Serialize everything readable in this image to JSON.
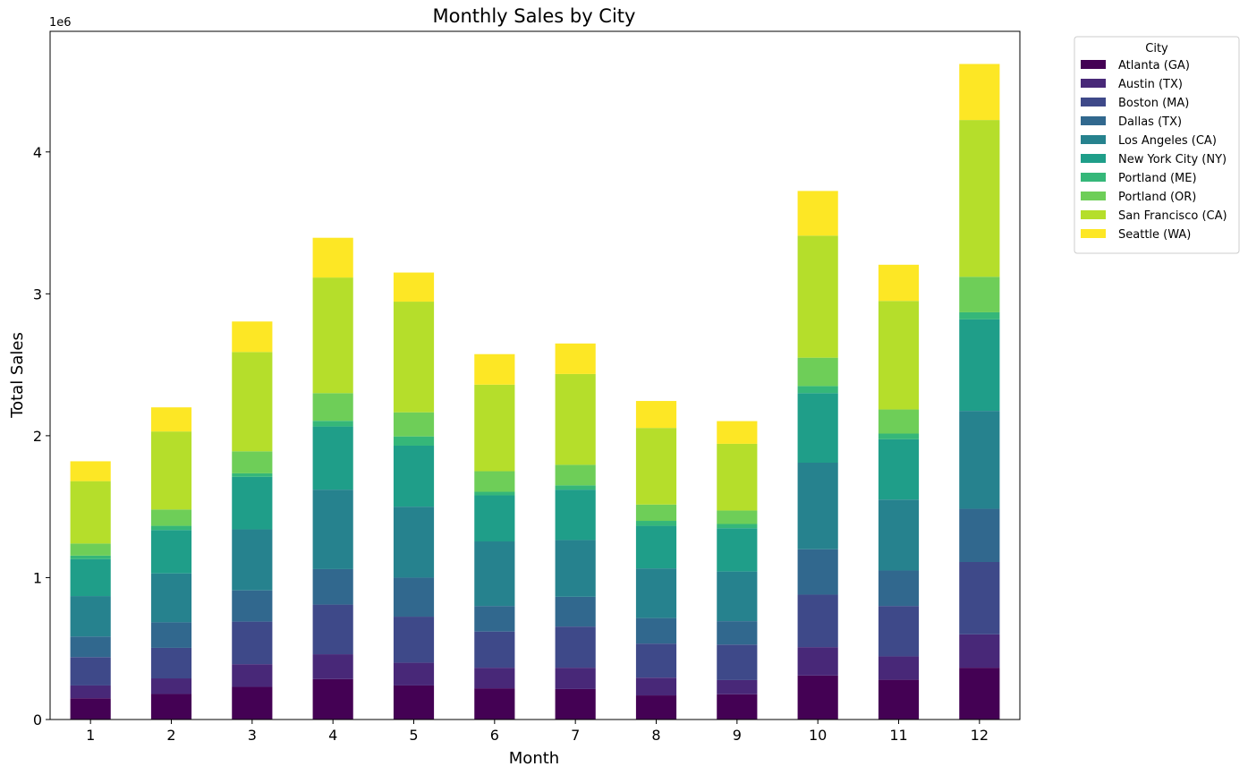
{
  "chart_data": {
    "type": "bar",
    "stacked": true,
    "title": "Monthly Sales by City",
    "xlabel": "Month",
    "ylabel": "Total Sales",
    "y_multiplier_label": "1e6",
    "ylim": [
      0,
      4850000
    ],
    "yticks": [
      0,
      1000000,
      2000000,
      3000000,
      4000000
    ],
    "ytick_labels": [
      "0",
      "1",
      "2",
      "3",
      "4"
    ],
    "categories": [
      "1",
      "2",
      "3",
      "4",
      "5",
      "6",
      "7",
      "8",
      "9",
      "10",
      "11",
      "12"
    ],
    "legend": {
      "title": "City",
      "placement": "outside-top-right"
    },
    "grid": false,
    "series": [
      {
        "name": "Atlanta (GA)",
        "color": "#440154",
        "values": [
          150000,
          180000,
          230000,
          285000,
          240000,
          220000,
          215000,
          170000,
          178000,
          310000,
          280000,
          365000
        ]
      },
      {
        "name": "Austin (TX)",
        "color": "#482878",
        "values": [
          90000,
          110000,
          160000,
          175000,
          160000,
          145000,
          150000,
          125000,
          100000,
          200000,
          165000,
          235000
        ]
      },
      {
        "name": "Boston (MA)",
        "color": "#3e4989",
        "values": [
          200000,
          215000,
          300000,
          350000,
          325000,
          255000,
          290000,
          240000,
          250000,
          370000,
          355000,
          510000
        ]
      },
      {
        "name": "Dallas (TX)",
        "color": "#31688e",
        "values": [
          145000,
          180000,
          220000,
          250000,
          275000,
          180000,
          210000,
          180000,
          165000,
          320000,
          250000,
          375000
        ]
      },
      {
        "name": "Los Angeles (CA)",
        "color": "#26828e",
        "values": [
          285000,
          345000,
          430000,
          560000,
          500000,
          455000,
          400000,
          350000,
          350000,
          610000,
          500000,
          690000
        ]
      },
      {
        "name": "New York City (NY)",
        "color": "#1f9e89",
        "values": [
          260000,
          305000,
          370000,
          445000,
          430000,
          325000,
          355000,
          300000,
          305000,
          490000,
          425000,
          645000
        ]
      },
      {
        "name": "Portland (ME)",
        "color": "#35b779",
        "values": [
          25000,
          30000,
          25000,
          40000,
          65000,
          25000,
          30000,
          35000,
          30000,
          50000,
          40000,
          50000
        ]
      },
      {
        "name": "Portland (OR)",
        "color": "#6ece58",
        "values": [
          85000,
          115000,
          155000,
          195000,
          170000,
          145000,
          145000,
          115000,
          95000,
          200000,
          170000,
          250000
        ]
      },
      {
        "name": "San Francisco (CA)",
        "color": "#b5de2b",
        "values": [
          440000,
          550000,
          700000,
          815000,
          780000,
          610000,
          640000,
          540000,
          470000,
          860000,
          765000,
          1105000
        ]
      },
      {
        "name": "Seattle (WA)",
        "color": "#fde725",
        "values": [
          140000,
          170000,
          215000,
          280000,
          205000,
          215000,
          215000,
          190000,
          160000,
          315000,
          255000,
          395000
        ]
      }
    ]
  }
}
